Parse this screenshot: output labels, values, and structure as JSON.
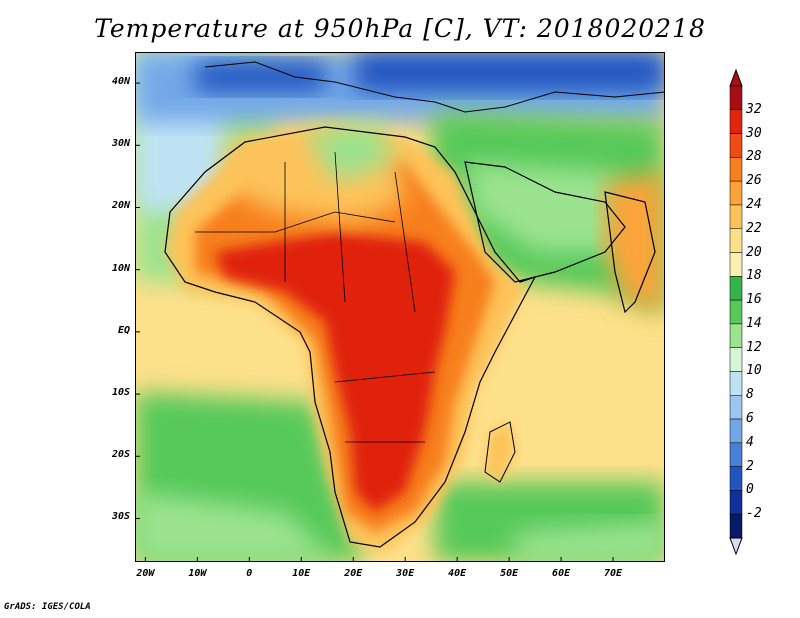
{
  "title": "Temperature at 950hPa [C], VT: 2018020218",
  "credit": "GrADS: IGES/COLA",
  "map": {
    "lon_range": [
      -22,
      80
    ],
    "lat_range": [
      -37,
      45
    ],
    "lat_ticks": [
      {
        "value": 40,
        "label": "40N"
      },
      {
        "value": 30,
        "label": "30N"
      },
      {
        "value": 20,
        "label": "20N"
      },
      {
        "value": 10,
        "label": "10N"
      },
      {
        "value": 0,
        "label": "EQ"
      },
      {
        "value": -10,
        "label": "10S"
      },
      {
        "value": -20,
        "label": "20S"
      },
      {
        "value": -30,
        "label": "30S"
      }
    ],
    "lon_ticks": [
      {
        "value": -20,
        "label": "20W"
      },
      {
        "value": -10,
        "label": "10W"
      },
      {
        "value": 0,
        "label": "0"
      },
      {
        "value": 10,
        "label": "10E"
      },
      {
        "value": 20,
        "label": "20E"
      },
      {
        "value": 30,
        "label": "30E"
      },
      {
        "value": 40,
        "label": "40E"
      },
      {
        "value": 50,
        "label": "50E"
      },
      {
        "value": 60,
        "label": "60E"
      },
      {
        "value": 70,
        "label": "70E"
      }
    ]
  },
  "colorbar": {
    "levels": [
      32,
      30,
      28,
      26,
      24,
      22,
      20,
      18,
      16,
      14,
      12,
      10,
      8,
      6,
      4,
      2,
      0,
      -2
    ],
    "colors": [
      "#a50f15",
      "#e0240e",
      "#f04b14",
      "#f77f1e",
      "#fca43a",
      "#fdc35a",
      "#fde08a",
      "#fcefb0",
      "#36b34a",
      "#56c95a",
      "#9be38f",
      "#d8f5d8",
      "#bfe3f5",
      "#9cc8f0",
      "#73a8e8",
      "#4a7fd8",
      "#2255c0",
      "#0f2f9a",
      "#081a66"
    ],
    "low_cap_color": "#dcd8f5",
    "high_cap_color": "#a50f15"
  }
}
